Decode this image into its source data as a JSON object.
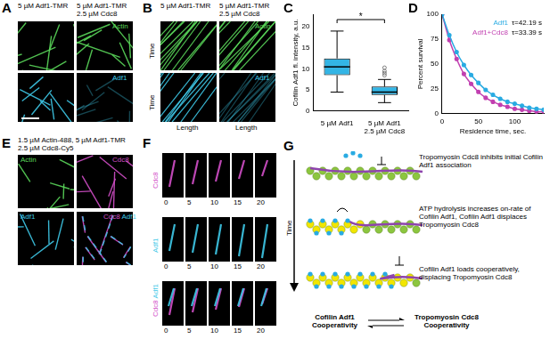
{
  "panels": {
    "A": {
      "label": "A",
      "conditions": [
        "5 µM Adf1-TMR",
        "5 µM Adf1-TMR\n2.5 µM Cdc8"
      ],
      "channels": [
        "Actin",
        "Adf1"
      ]
    },
    "B": {
      "label": "B",
      "conditions": [
        "5 µM Adf1-TMR",
        "5 µM Adf1-TMR\n2.5 µM Cdc8"
      ],
      "channels": [
        "Actin",
        "Adf1"
      ],
      "y_axis": "Time",
      "x_axis": "Length"
    },
    "E": {
      "label": "E",
      "title": "1.5 µM Actin-488, 5 µM Adf1-TMR\n2.5 µM Cdc8-Cy5",
      "channels": [
        "Actin",
        "Cdc8",
        "Adf1",
        "Cdc8 Adf1"
      ]
    },
    "F": {
      "label": "F",
      "channels": [
        "Cdc8",
        "Adf1",
        "Cdc8 Adf1"
      ],
      "times": [
        0,
        5,
        10,
        15,
        20
      ]
    },
    "G": {
      "label": "G",
      "time_label": "Time",
      "steps": [
        "Tropomyosin Cdc8 inhibits initial Cofilin Adf1 association",
        "ATP hydrolysis increases on-rate of Cofilin Adf1, Cofilin Adf1 displaces Tropomyosin Cdc8",
        "Cofilin Adf1 loads cooperatively, displacing Tropomyosin Cdc8"
      ],
      "cooperativity": [
        "Cofilin Adf1\nCooperativity",
        "Tropomyosin Cdc8\nCooperativity"
      ]
    }
  },
  "chart_data": [
    {
      "panel": "C",
      "type": "box",
      "categories": [
        "5 µM Adf1",
        "5 µM Adf1\n2.5 µM Cdc8"
      ],
      "ylabel": "Cofilin Adf1 fl. intensity, a.u.",
      "boxes": [
        {
          "min": 4.5,
          "q1": 8.5,
          "median": 10.5,
          "q3": 12.5,
          "max": 19,
          "outliers": []
        },
        {
          "min": 2,
          "q1": 3.8,
          "median": 4.5,
          "q3": 5.8,
          "max": 7.5,
          "outliers": [
            8.5,
            9,
            9.5,
            10.3
          ]
        }
      ],
      "colors": [
        "#33b5e5",
        "#33b5e5"
      ],
      "annotations": [
        "*"
      ],
      "ylim": [
        0,
        23
      ],
      "yticks": [
        0,
        5,
        10,
        15,
        20
      ],
      "grid": false
    },
    {
      "panel": "D",
      "type": "line",
      "xlabel": "Residence time, sec.",
      "ylabel": "Percent survival",
      "x": [
        0,
        10,
        20,
        30,
        40,
        50,
        60,
        70,
        80,
        90,
        100,
        110,
        120,
        130,
        140
      ],
      "series": [
        {
          "name": "Adf1",
          "color": "#29abe2",
          "marker": "circle",
          "annotation": "τ=42.19 s",
          "values": [
            100,
            79,
            62,
            49,
            39,
            31,
            24,
            19,
            15,
            12,
            10,
            8,
            6,
            5,
            4
          ]
        },
        {
          "name": "Adf1+Cdc8",
          "color": "#c13fb0",
          "marker": "circle",
          "annotation": "τ=33.39 s",
          "values": [
            100,
            74,
            55,
            40,
            30,
            22,
            16,
            12,
            9,
            7,
            5,
            4,
            3,
            2,
            2
          ]
        }
      ],
      "xlim": [
        0,
        140
      ],
      "xticks": [
        0,
        50,
        100
      ],
      "ylim": [
        0,
        100
      ],
      "yticks": [
        0,
        25,
        50,
        75,
        100
      ],
      "legend": "upper right",
      "grid": false
    }
  ]
}
